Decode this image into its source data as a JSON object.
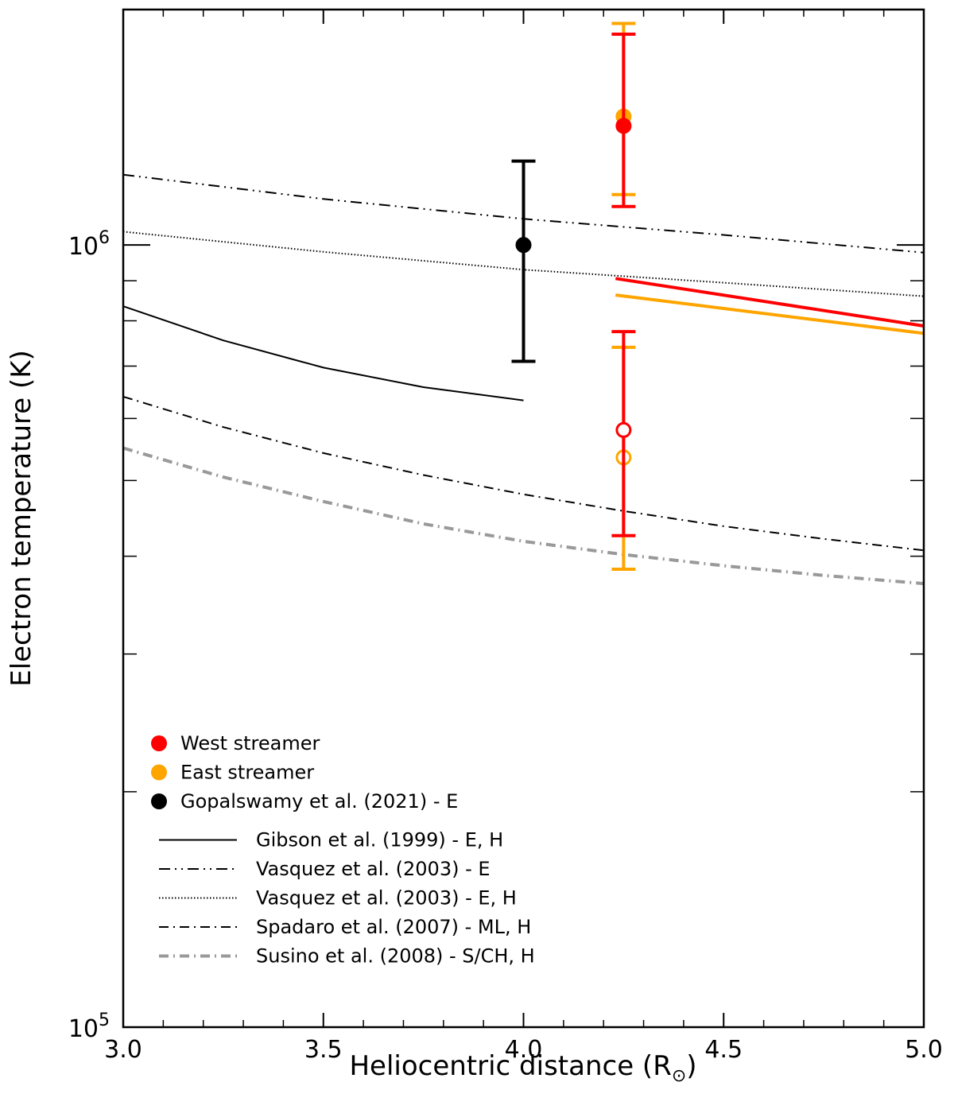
{
  "chart_data": {
    "type": "line",
    "xlabel": "Heliocentric distance (R",
    "xlabel_symbol": "⊙",
    "xlabel_suffix": ")",
    "ylabel": "Electron temperature (K)",
    "xlim": [
      3.0,
      5.0
    ],
    "ylim": [
      100000,
      2000000
    ],
    "yscale": "log",
    "x_ticks": [
      {
        "value": 3.0,
        "label": "3.0"
      },
      {
        "value": 3.5,
        "label": "3.5"
      },
      {
        "value": 4.0,
        "label": "4.0"
      },
      {
        "value": 4.5,
        "label": "4.5"
      },
      {
        "value": 5.0,
        "label": "5.0"
      }
    ],
    "y_ticks": [
      {
        "value": 100000,
        "base": "10",
        "exp": "5"
      },
      {
        "value": 1000000,
        "base": "10",
        "exp": "6"
      }
    ],
    "legend_position": "lower-left",
    "points": [
      {
        "name": "West streamer (filled)",
        "x": 4.25,
        "y": 1420000,
        "yerr_low": 1120000,
        "yerr_high": 1860000,
        "color": "#ff0000",
        "filled": true
      },
      {
        "name": "East streamer (filled)",
        "x": 4.25,
        "y": 1460000,
        "yerr_low": 1160000,
        "yerr_high": 1920000,
        "color": "#ffa500",
        "filled": true
      },
      {
        "name": "West streamer (open)",
        "x": 4.25,
        "y": 580000,
        "yerr_low": 425000,
        "yerr_high": 775000,
        "color": "#ff0000",
        "filled": false
      },
      {
        "name": "East streamer (open)",
        "x": 4.25,
        "y": 535000,
        "yerr_low": 385000,
        "yerr_high": 740000,
        "color": "#ffa500",
        "filled": false
      },
      {
        "name": "Gopalswamy et al. (2021) - E",
        "x": 4.0,
        "y": 1000000,
        "yerr_low": 710000,
        "yerr_high": 1280000,
        "color": "#000000",
        "filled": true
      }
    ],
    "series": [
      {
        "name": "West streamer fit",
        "color": "#ff0000",
        "style": "solid",
        "width": 4,
        "x": [
          4.23,
          5.0
        ],
        "y": [
          906000,
          788000
        ]
      },
      {
        "name": "East streamer fit",
        "color": "#ffa500",
        "style": "solid",
        "width": 4,
        "x": [
          4.23,
          5.0
        ],
        "y": [
          863000,
          771000
        ]
      },
      {
        "name": "Gibson et al. (1999) - E, H",
        "color": "#000000",
        "style": "solid",
        "width": 2,
        "x": [
          3.0,
          3.25,
          3.5,
          3.75,
          4.0
        ],
        "y": [
          835000,
          755000,
          697000,
          658000,
          633000
        ]
      },
      {
        "name": "Vasquez et al. (2003) - E",
        "color": "#000000",
        "style": "dashdotdot",
        "width": 2,
        "x": [
          3.0,
          3.5,
          4.0,
          4.5,
          5.0
        ],
        "y": [
          1230000,
          1145000,
          1080000,
          1030000,
          978000
        ]
      },
      {
        "name": "Vasquez et al. (2003) - E, H",
        "color": "#000000",
        "style": "dotted",
        "width": 2,
        "x": [
          3.0,
          3.5,
          4.0,
          4.5,
          5.0
        ],
        "y": [
          1040000,
          980000,
          930000,
          895000,
          860000
        ]
      },
      {
        "name": "Spadaro et al. (2007) - ML, H",
        "color": "#000000",
        "style": "dashdot",
        "width": 2,
        "x": [
          3.0,
          3.25,
          3.5,
          3.75,
          4.0,
          4.25,
          4.5,
          4.75,
          5.0
        ],
        "y": [
          640000,
          585000,
          542000,
          508000,
          480000,
          457000,
          437000,
          421000,
          407000
        ]
      },
      {
        "name": "Susino et al. (2008) - S/CH, H",
        "color": "#999999",
        "style": "dashdot",
        "width": 4,
        "x": [
          3.0,
          3.25,
          3.5,
          3.75,
          4.0,
          4.25,
          4.5,
          4.75,
          5.0
        ],
        "y": [
          550000,
          505000,
          470000,
          440000,
          418000,
          402000,
          389000,
          378000,
          369000
        ]
      }
    ],
    "legend": [
      {
        "label": "West streamer",
        "kind": "marker",
        "color": "#ff0000",
        "style": ""
      },
      {
        "label": "East streamer",
        "kind": "marker",
        "color": "#ffa500",
        "style": ""
      },
      {
        "label": "Gopalswamy et al. (2021) - E",
        "kind": "marker",
        "color": "#000000",
        "style": ""
      },
      {
        "label": "Gibson et al. (1999) - E, H",
        "kind": "line",
        "color": "#000000",
        "style": "solid"
      },
      {
        "label": "Vasquez et al. (2003) - E",
        "kind": "line",
        "color": "#000000",
        "style": "dashdotdot"
      },
      {
        "label": "Vasquez et al. (2003) - E, H",
        "kind": "line",
        "color": "#000000",
        "style": "dotted"
      },
      {
        "label": "Spadaro et al. (2007) - ML, H",
        "kind": "line",
        "color": "#000000",
        "style": "dashdot"
      },
      {
        "label": "Susino et al. (2008) - S/CH, H",
        "kind": "line",
        "color": "#999999",
        "style": "dashdot"
      }
    ]
  }
}
